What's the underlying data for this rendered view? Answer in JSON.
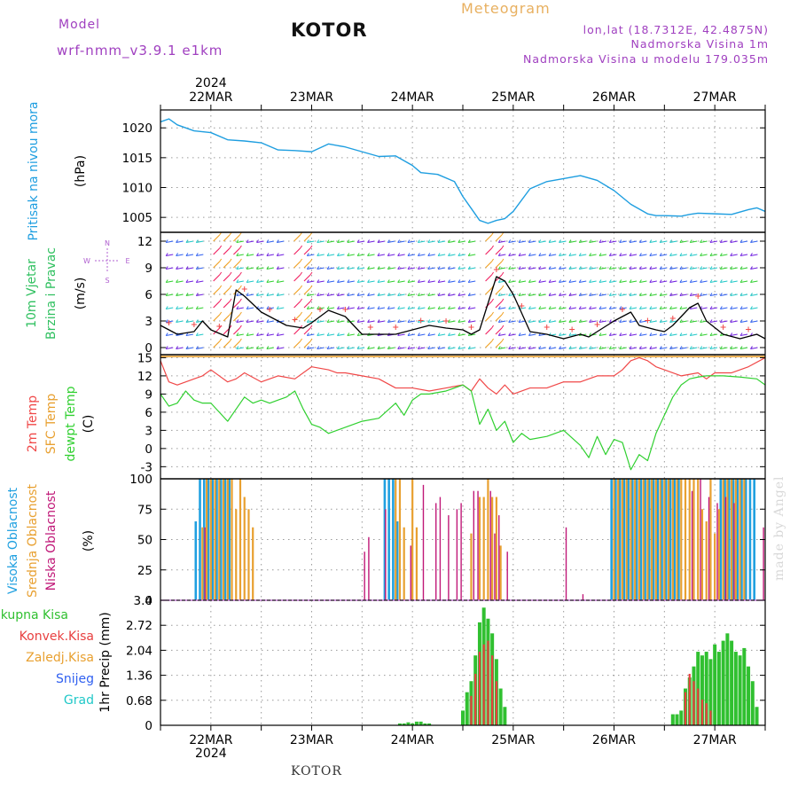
{
  "header": {
    "model_label": "Model",
    "model_name": "wrf-nmm_v3.9.1  e1km",
    "title": "KOTOR",
    "meteogram": "Meteogram",
    "lonlat": "lon,lat (18.7312E, 42.4875N)",
    "altitude": "Nadmorska Visina 1m",
    "altitude_model": "Nadmorska Visina u modelu 179.035m"
  },
  "bottom_title": "KOTOR",
  "watermark": "made by Angel",
  "colors": {
    "pressure": "#1e9ee0",
    "temp2m": "#f04848",
    "sfc_temp": "#e8a030",
    "dewpt": "#30d030",
    "high_cloud": "#20a0e0",
    "mid_cloud": "#e8a030",
    "low_cloud": "#c01878",
    "precip_total": "#30c030",
    "precip_conv": "#e84040",
    "wind_purple": "#7020e0",
    "wind_blue": "#3060f0",
    "wind_cyan": "#20c8c8",
    "wind_green": "#30d030",
    "wind_orange": "#f0a020",
    "wind_red": "#f02060"
  },
  "time_axis": {
    "year_top": "2024",
    "year_bottom": "2024",
    "dates": [
      "22MAR",
      "23MAR",
      "24MAR",
      "25MAR",
      "26MAR",
      "27MAR"
    ],
    "start_hour": 0,
    "end_hour": 144
  },
  "chart_data": [
    {
      "type": "line",
      "ylabel": [
        "Pritisak na nivou mora",
        "(hPa)"
      ],
      "yticks": [
        1005,
        1010,
        1015,
        1020
      ],
      "ylim": [
        1002.5,
        1023
      ],
      "grid": true,
      "series": [
        {
          "name": "Pritisak na nivou mora",
          "x": [
            0,
            2,
            4,
            8,
            12,
            16,
            20,
            24,
            28,
            32,
            36,
            40,
            44,
            48,
            52,
            56,
            60,
            62,
            66,
            70,
            72,
            74,
            76,
            78,
            80,
            82,
            84,
            88,
            92,
            96,
            100,
            104,
            108,
            112,
            116,
            118,
            120,
            124,
            126,
            128,
            132,
            136,
            140,
            142,
            144
          ],
          "values": [
            1021,
            1021.5,
            1020.5,
            1019.5,
            1019.2,
            1018.0,
            1017.8,
            1017.5,
            1016.3,
            1016.2,
            1016.0,
            1017.3,
            1016.8,
            1016.0,
            1015.2,
            1015.3,
            1013.7,
            1012.5,
            1012.2,
            1011.0,
            1008.5,
            1006.5,
            1004.5,
            1004.0,
            1004.5,
            1004.8,
            1006.0,
            1009.8,
            1011.0,
            1011.5,
            1012.0,
            1011.2,
            1009.5,
            1007.2,
            1005.6,
            1005.3,
            1005.3,
            1005.2,
            1005.5,
            1005.7,
            1005.6,
            1005.5,
            1006.3,
            1006.6,
            1006.0
          ]
        }
      ]
    },
    {
      "type": "line",
      "ylabel": [
        "10m Vjetar",
        "Brzina i Pravac",
        "(m/s)"
      ],
      "compass": [
        "N",
        "E",
        "S",
        "W"
      ],
      "yticks": [
        0,
        3,
        6,
        9,
        12
      ],
      "ylim": [
        -0.8,
        13
      ],
      "grid": true,
      "series": [
        {
          "name": "10m wind speed",
          "x": [
            0,
            4,
            8,
            10,
            12,
            16,
            18,
            20,
            24,
            30,
            34,
            36,
            40,
            44,
            48,
            52,
            56,
            60,
            64,
            68,
            72,
            74,
            76,
            78,
            80,
            82,
            84,
            88,
            92,
            96,
            100,
            102,
            104,
            108,
            112,
            114,
            118,
            120,
            122,
            126,
            128,
            130,
            134,
            138,
            142,
            144
          ],
          "values": [
            2.5,
            1.5,
            1.8,
            3.0,
            2.0,
            1.2,
            6.5,
            5.8,
            4.0,
            2.5,
            2.2,
            2.8,
            4.2,
            3.5,
            1.5,
            1.5,
            1.5,
            2.0,
            2.5,
            2.2,
            2.0,
            1.5,
            2.0,
            5.0,
            8.0,
            7.5,
            6.0,
            1.8,
            1.5,
            1.0,
            1.5,
            1.2,
            1.8,
            3.0,
            4.0,
            2.5,
            2.0,
            1.8,
            2.5,
            4.5,
            5.0,
            3.0,
            1.5,
            1.0,
            1.5,
            1.0
          ]
        }
      ]
    },
    {
      "type": "line",
      "ylabel": [
        "2m Temp",
        "SFC Temp",
        "dewpt Temp",
        "(C)"
      ],
      "yticks": [
        -3,
        0,
        3,
        6,
        9,
        12,
        15
      ],
      "ylim": [
        -5,
        15.5
      ],
      "grid": true,
      "series": [
        {
          "name": "2m Temp",
          "x": [
            0,
            2,
            4,
            8,
            10,
            12,
            16,
            18,
            20,
            24,
            28,
            32,
            36,
            40,
            42,
            44,
            48,
            52,
            56,
            60,
            64,
            68,
            72,
            74,
            76,
            78,
            80,
            82,
            84,
            88,
            92,
            96,
            100,
            104,
            108,
            110,
            112,
            114,
            116,
            118,
            120,
            124,
            128,
            130,
            132,
            136,
            140,
            144
          ],
          "values": [
            14.5,
            11.0,
            10.5,
            11.5,
            12.0,
            13.0,
            11.0,
            11.5,
            12.5,
            11.0,
            12.0,
            11.5,
            13.5,
            13.0,
            12.5,
            12.5,
            12.0,
            11.5,
            10.0,
            10.0,
            9.5,
            10.0,
            10.5,
            9.5,
            11.5,
            10.0,
            9.0,
            10.5,
            9.0,
            10.0,
            10.0,
            11.0,
            11.0,
            12.0,
            12.0,
            13.0,
            14.5,
            15.0,
            14.5,
            13.5,
            13.0,
            12.0,
            12.5,
            11.5,
            12.5,
            12.5,
            13.5,
            15.0
          ]
        },
        {
          "name": "SFC Temp",
          "x": [
            0,
            144
          ],
          "values": [
            15.2,
            15.2
          ]
        },
        {
          "name": "dewpt Temp",
          "x": [
            0,
            2,
            4,
            6,
            8,
            10,
            12,
            14,
            16,
            18,
            20,
            22,
            24,
            26,
            28,
            30,
            32,
            34,
            36,
            38,
            40,
            44,
            48,
            52,
            56,
            58,
            60,
            62,
            64,
            68,
            72,
            74,
            76,
            78,
            80,
            82,
            84,
            86,
            88,
            92,
            96,
            100,
            102,
            104,
            106,
            108,
            110,
            112,
            114,
            116,
            118,
            120,
            122,
            124,
            126,
            128,
            130,
            134,
            138,
            142,
            144
          ],
          "values": [
            9.0,
            7.0,
            7.5,
            9.5,
            8.0,
            7.5,
            7.5,
            6.0,
            4.5,
            6.5,
            8.5,
            7.5,
            8.0,
            7.5,
            8.0,
            8.5,
            9.5,
            6.5,
            4.0,
            3.5,
            2.5,
            3.5,
            4.5,
            5.0,
            7.5,
            5.5,
            8.0,
            9.0,
            9.0,
            9.5,
            10.5,
            9.5,
            4.0,
            6.5,
            3.0,
            4.5,
            1.0,
            2.5,
            1.5,
            2.0,
            3.0,
            0.5,
            -1.5,
            2.0,
            -1.0,
            1.5,
            1.0,
            -3.5,
            -1.0,
            -2.0,
            2.5,
            5.5,
            8.5,
            10.5,
            11.5,
            11.8,
            12.0,
            12.0,
            11.8,
            11.5,
            10.5
          ]
        }
      ]
    },
    {
      "type": "bar",
      "ylabel": [
        "Visoka Oblacnost",
        "Srednja Oblacnost",
        "Niska Oblacnost",
        "(%)"
      ],
      "yticks": [
        0,
        25,
        50,
        75,
        100
      ],
      "ylim": [
        0,
        100
      ],
      "grid": true,
      "series": [
        {
          "name": "Visoka Oblacnost",
          "x": [
            9,
            10,
            11,
            12,
            13,
            14,
            15,
            16,
            17,
            54,
            55,
            56,
            57,
            108,
            109,
            110,
            111,
            112,
            113,
            114,
            115,
            116,
            117,
            118,
            119,
            120,
            121,
            122,
            123,
            124,
            134,
            135,
            136,
            137,
            138,
            139,
            140,
            141,
            142
          ],
          "values": [
            65,
            100,
            100,
            100,
            100,
            100,
            100,
            100,
            100,
            100,
            100,
            100,
            65,
            100,
            100,
            100,
            100,
            100,
            100,
            100,
            100,
            100,
            100,
            100,
            100,
            100,
            100,
            100,
            100,
            100,
            100,
            100,
            100,
            100,
            100,
            100,
            100,
            100,
            100
          ]
        },
        {
          "name": "Srednja Oblacnost",
          "x": [
            10,
            11,
            12,
            13,
            14,
            15,
            16,
            17,
            18,
            19,
            20,
            21,
            22,
            56,
            57,
            58,
            60,
            61,
            74,
            76,
            77,
            78,
            79,
            80,
            81,
            108,
            109,
            110,
            111,
            112,
            113,
            114,
            115,
            116,
            117,
            118,
            119,
            120,
            121,
            122,
            123,
            124,
            125,
            126,
            127,
            128,
            129,
            130,
            131,
            132,
            133,
            134,
            135,
            136,
            137,
            138,
            139
          ],
          "values": [
            60,
            100,
            100,
            100,
            100,
            100,
            100,
            100,
            75,
            100,
            85,
            75,
            60,
            100,
            100,
            60,
            100,
            60,
            55,
            85,
            85,
            100,
            85,
            85,
            45,
            100,
            100,
            100,
            100,
            100,
            100,
            100,
            100,
            100,
            100,
            100,
            100,
            100,
            100,
            100,
            100,
            100,
            100,
            100,
            100,
            100,
            75,
            65,
            100,
            55,
            75,
            100,
            100,
            100,
            100,
            100,
            100
          ]
        },
        {
          "name": "Niska Oblacnost",
          "x": [
            10,
            48,
            49,
            53,
            59,
            62,
            65,
            66,
            68,
            70,
            71,
            74,
            75,
            78,
            79,
            80,
            82,
            96,
            100,
            126,
            128,
            130,
            132,
            134,
            136,
            143
          ],
          "values": [
            60,
            40,
            52,
            75,
            45,
            95,
            80,
            85,
            70,
            75,
            80,
            90,
            90,
            90,
            55,
            70,
            40,
            60,
            5,
            90,
            100,
            85,
            80,
            85,
            80,
            60
          ]
        }
      ]
    },
    {
      "type": "bar",
      "ylabel": [
        "Ukupna Kisa",
        "Konvek.Kisa",
        "Zaledj.Kisa",
        "Snijeg",
        "Grad",
        "1hr Precip (mm)"
      ],
      "yticks": [
        0,
        0.68,
        1.36,
        2.04,
        2.72,
        3.4
      ],
      "ylim": [
        0,
        3.4
      ],
      "grid": true,
      "series": [
        {
          "name": "Ukupna Kisa",
          "x": [
            57,
            58,
            59,
            60,
            61,
            62,
            63,
            64,
            72,
            73,
            74,
            75,
            76,
            77,
            78,
            79,
            80,
            81,
            82,
            122,
            123,
            124,
            125,
            126,
            127,
            128,
            129,
            130,
            131,
            132,
            133,
            134,
            135,
            136,
            137,
            138,
            139,
            140,
            141,
            142
          ],
          "values": [
            0.05,
            0.05,
            0.08,
            0.05,
            0.1,
            0.1,
            0.05,
            0.05,
            0.4,
            0.9,
            1.2,
            1.9,
            2.8,
            3.2,
            2.9,
            2.5,
            1.8,
            1.0,
            0.5,
            0.3,
            0.3,
            0.4,
            1.0,
            1.3,
            1.6,
            2.0,
            1.9,
            2.0,
            1.8,
            2.2,
            2.0,
            2.3,
            2.5,
            2.3,
            2.0,
            1.9,
            2.1,
            1.6,
            1.2,
            0.5
          ]
        },
        {
          "name": "Konvek.Kisa",
          "x": [
            74,
            75,
            76,
            77,
            78,
            79,
            80,
            125,
            126,
            127,
            128,
            129,
            130,
            131
          ],
          "values": [
            0.8,
            1.4,
            2.0,
            2.2,
            2.3,
            1.9,
            1.2,
            0.9,
            1.4,
            1.2,
            1.0,
            0.7,
            0.6,
            0.4
          ]
        }
      ]
    }
  ]
}
